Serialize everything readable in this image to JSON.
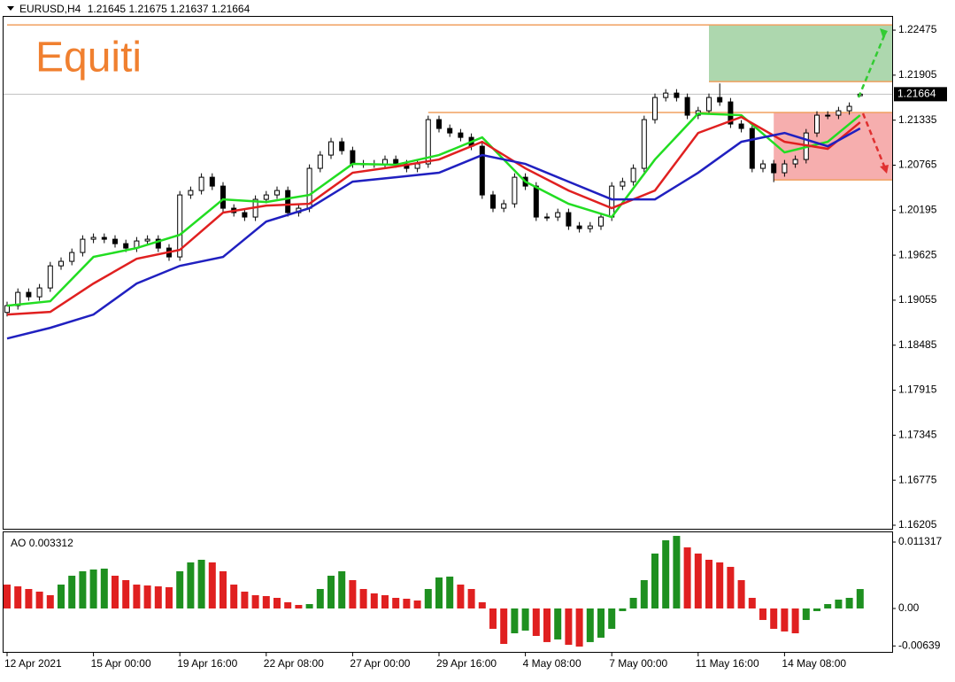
{
  "chart_data": [
    {
      "type": "candlestick",
      "title": "EURUSD,H4",
      "watermark": "Equiti",
      "categories": [
        "12 Apr 2021",
        null,
        null,
        null,
        null,
        null,
        null,
        null,
        "15 Apr 00:00",
        null,
        null,
        null,
        null,
        null,
        null,
        null,
        "19 Apr 16:00",
        null,
        null,
        null,
        null,
        null,
        null,
        null,
        "22 Apr 08:00",
        null,
        null,
        null,
        null,
        null,
        null,
        null,
        "27 Apr 00:00",
        null,
        null,
        null,
        null,
        null,
        null,
        null,
        "29 Apr 16:00",
        null,
        null,
        null,
        null,
        null,
        null,
        null,
        "4 May 08:00",
        null,
        null,
        null,
        null,
        null,
        null,
        null,
        "7 May 00:00",
        null,
        null,
        null,
        null,
        null,
        null,
        null,
        "11 May 16:00",
        null,
        null,
        null,
        null,
        null,
        null,
        null,
        "14 May 08:00",
        null,
        null,
        null,
        null,
        null,
        null,
        null
      ],
      "candles": {
        "open": [
          1.189,
          1.18986,
          1.19154,
          1.19098,
          1.1921,
          1.1949,
          1.19547,
          1.19659,
          1.19827,
          1.1985,
          1.19827,
          1.19771,
          1.19715,
          1.19805,
          1.19827,
          1.19715,
          1.19603,
          1.20388,
          1.20444,
          1.20612,
          1.205,
          1.2022,
          1.20164,
          1.20108,
          1.20332,
          1.20388,
          1.20444,
          1.20164,
          1.2022,
          1.20725,
          1.20893,
          1.21061,
          1.20949,
          1.20781,
          1.20781,
          1.20781,
          1.20837,
          1.20781,
          1.20725,
          1.20781,
          1.21342,
          1.2123,
          1.21173,
          1.21117,
          1.21005,
          1.20388,
          1.2022,
          1.20276,
          1.20612,
          1.205,
          1.20108,
          1.20108,
          1.20164,
          1.19995,
          1.19962,
          1.19995,
          1.20108,
          1.205,
          1.20556,
          1.20725,
          1.21342,
          1.21622,
          1.21678,
          1.21622,
          1.21398,
          1.21454,
          1.21622,
          1.21566,
          1.21286,
          1.2123,
          1.20725,
          1.20781,
          1.20669,
          1.20781,
          1.20837,
          1.21173,
          1.21398,
          1.21398,
          1.21454,
          1.21645
        ],
        "high": [
          1.19036,
          1.19204,
          1.19204,
          1.1926,
          1.1954,
          1.19597,
          1.19709,
          1.19877,
          1.199,
          1.199,
          1.19877,
          1.19821,
          1.19855,
          1.19877,
          1.19877,
          1.19765,
          1.20438,
          1.20494,
          1.20662,
          1.20662,
          1.2055,
          1.2027,
          1.20214,
          1.20382,
          1.20438,
          1.20494,
          1.20494,
          1.2027,
          1.20775,
          1.20943,
          1.21111,
          1.21111,
          1.20999,
          1.20831,
          1.20831,
          1.20887,
          1.20887,
          1.20831,
          1.20831,
          1.21392,
          1.21392,
          1.2128,
          1.21223,
          1.21167,
          1.21055,
          1.20438,
          1.20326,
          1.20662,
          1.20662,
          1.2055,
          1.20158,
          1.20214,
          1.20214,
          1.20045,
          1.20045,
          1.20158,
          1.2055,
          1.20606,
          1.20775,
          1.21392,
          1.21672,
          1.21728,
          1.21728,
          1.21672,
          1.21504,
          1.21672,
          1.218,
          1.21616,
          1.21336,
          1.2128,
          1.20831,
          1.20831,
          1.20831,
          1.20887,
          1.21223,
          1.21448,
          1.21448,
          1.21504,
          1.2156,
          1.21675
        ],
        "low": [
          1.1885,
          1.18936,
          1.19048,
          1.19048,
          1.1916,
          1.1944,
          1.19497,
          1.19609,
          1.19777,
          1.19777,
          1.19721,
          1.19665,
          1.19665,
          1.19755,
          1.19665,
          1.19553,
          1.19553,
          1.20338,
          1.20394,
          1.2045,
          1.2017,
          1.20114,
          1.20058,
          1.20058,
          1.20282,
          1.20338,
          1.20114,
          1.20114,
          1.2017,
          1.20675,
          1.20843,
          1.20899,
          1.20731,
          1.20731,
          1.20731,
          1.20731,
          1.20731,
          1.20675,
          1.20675,
          1.20731,
          1.2118,
          1.21123,
          1.21067,
          1.20955,
          1.20338,
          1.2017,
          1.2017,
          1.20226,
          1.2045,
          1.20058,
          1.20058,
          1.20058,
          1.19945,
          1.19912,
          1.19912,
          1.19945,
          1.20058,
          1.2045,
          1.20506,
          1.20675,
          1.21292,
          1.21572,
          1.21572,
          1.21348,
          1.21348,
          1.21404,
          1.21516,
          1.21236,
          1.2118,
          1.20675,
          1.20675,
          1.2055,
          1.20619,
          1.20731,
          1.20787,
          1.21123,
          1.21348,
          1.21348,
          1.21404,
          1.21637
        ],
        "close": [
          1.18986,
          1.19154,
          1.19098,
          1.1921,
          1.1949,
          1.19547,
          1.19659,
          1.19827,
          1.1985,
          1.19827,
          1.19771,
          1.19715,
          1.19805,
          1.19827,
          1.19715,
          1.19603,
          1.20388,
          1.20444,
          1.20612,
          1.205,
          1.2022,
          1.20164,
          1.20108,
          1.20332,
          1.20388,
          1.20444,
          1.20164,
          1.2022,
          1.20725,
          1.20893,
          1.21061,
          1.20949,
          1.20781,
          1.20781,
          1.20781,
          1.20837,
          1.20781,
          1.20725,
          1.20781,
          1.21342,
          1.2123,
          1.21173,
          1.21117,
          1.21005,
          1.20388,
          1.2022,
          1.20276,
          1.20612,
          1.205,
          1.20108,
          1.20108,
          1.20164,
          1.19995,
          1.19962,
          1.19995,
          1.20108,
          1.205,
          1.20556,
          1.20725,
          1.21342,
          1.21622,
          1.21678,
          1.21622,
          1.21398,
          1.21454,
          1.21622,
          1.21566,
          1.21286,
          1.2123,
          1.20725,
          1.20781,
          1.20669,
          1.20781,
          1.20837,
          1.21173,
          1.21398,
          1.21398,
          1.21454,
          1.2151,
          1.21664
        ]
      },
      "up_color": "#ffffff",
      "down_color": "#000000",
      "wick_color": "#000000",
      "series": [
        {
          "color": "#22dd22",
          "x": [
            0,
            4,
            8,
            12,
            16,
            20,
            24,
            28,
            32,
            36,
            40,
            44,
            48,
            52,
            56,
            60,
            64,
            68,
            72,
            76,
            79
          ],
          "values": [
            1.18986,
            1.19042,
            1.19603,
            1.19715,
            1.19883,
            1.20332,
            1.20298,
            1.20388,
            1.20781,
            1.2077,
            1.20893,
            1.21117,
            1.20556,
            1.20276,
            1.20108,
            1.20837,
            1.2142,
            1.21398,
            1.20927,
            1.21061,
            1.21398
          ]
        },
        {
          "color": "#e02020",
          "x": [
            0,
            4,
            8,
            12,
            16,
            20,
            24,
            28,
            32,
            36,
            40,
            44,
            48,
            52,
            56,
            60,
            64,
            68,
            72,
            76,
            79
          ],
          "values": [
            1.18873,
            1.18907,
            1.19266,
            1.1958,
            1.19692,
            1.20164,
            1.20253,
            1.20276,
            1.20669,
            1.20747,
            1.20837,
            1.21061,
            1.20725,
            1.20444,
            1.2022,
            1.20444,
            1.21173,
            1.21375,
            1.21061,
            1.20972,
            1.21308
          ]
        },
        {
          "color": "#2020c0",
          "x": [
            0,
            4,
            8,
            12,
            16,
            20,
            24,
            28,
            32,
            36,
            40,
            44,
            48,
            52,
            56,
            60,
            64,
            68,
            72,
            76,
            79
          ],
          "values": [
            1.1857,
            1.18705,
            1.18873,
            1.19266,
            1.1949,
            1.19603,
            1.20051,
            1.2022,
            1.20556,
            1.20612,
            1.20669,
            1.20893,
            1.20781,
            1.20556,
            1.20332,
            1.20332,
            1.20669,
            1.21061,
            1.21173,
            1.21005,
            1.2123
          ]
        }
      ],
      "levels": [
        {
          "value": 1.22542,
          "start": 0,
          "color": "#f0a060"
        },
        {
          "value": 1.21824,
          "start": 65,
          "color": "#f0a060"
        },
        {
          "value": 1.21432,
          "start": 39,
          "color": "#f0a060"
        },
        {
          "value": 1.20579,
          "start": 71,
          "color": "#f0a060"
        }
      ],
      "zones": [
        {
          "from": 1.21824,
          "to": 1.22542,
          "start": 65,
          "color": "#9fd0a0"
        },
        {
          "from": 1.20579,
          "to": 1.21432,
          "start": 71,
          "color": "#f4a0a0"
        }
      ],
      "ylim": [
        1.1616,
        1.22655
      ],
      "yticks": [
        1.22475,
        1.21905,
        1.21335,
        1.20765,
        1.20195,
        1.19625,
        1.19055,
        1.18485,
        1.17915,
        1.17345,
        1.16775,
        1.16205
      ]
    },
    {
      "type": "bar",
      "name": "AO",
      "values": [
        0.00407,
        0.00377,
        0.00332,
        0.00287,
        0.00226,
        0.00407,
        0.00558,
        0.00634,
        0.00664,
        0.00679,
        0.00558,
        0.00483,
        0.00407,
        0.00392,
        0.00377,
        0.00362,
        0.00634,
        0.00785,
        0.0083,
        0.00785,
        0.00634,
        0.00407,
        0.00287,
        0.00226,
        0.00211,
        0.00181,
        0.00106,
        0.0006,
        0.00075,
        0.00332,
        0.00558,
        0.00634,
        0.00483,
        0.00332,
        0.00257,
        0.00226,
        0.00181,
        0.00166,
        0.00136,
        0.00332,
        0.00528,
        0.00543,
        0.00407,
        0.00332,
        0.00106,
        -0.00347,
        -0.00604,
        -0.00423,
        -0.00377,
        -0.00468,
        -0.00573,
        -0.00528,
        -0.00619,
        -0.00649,
        -0.00573,
        -0.00498,
        -0.00347,
        -0.00045,
        0.00181,
        0.00483,
        0.00936,
        0.01162,
        0.01237,
        0.01041,
        0.00936,
        0.0083,
        0.00785,
        0.00709,
        0.00483,
        0.00181,
        -0.00196,
        -0.00347,
        -0.00392,
        -0.00423,
        -0.00196,
        -0.00045,
        0.00075,
        0.00151,
        0.00181,
        0.003312
      ],
      "up_color": "#1e9020",
      "down_color": "#e02020",
      "ylim": [
        -0.00755,
        0.01298
      ],
      "yticks": [
        0.011317,
        {
          "value": 0,
          "label": "0.00"
        },
        -0.00639
      ]
    }
  ]
}
